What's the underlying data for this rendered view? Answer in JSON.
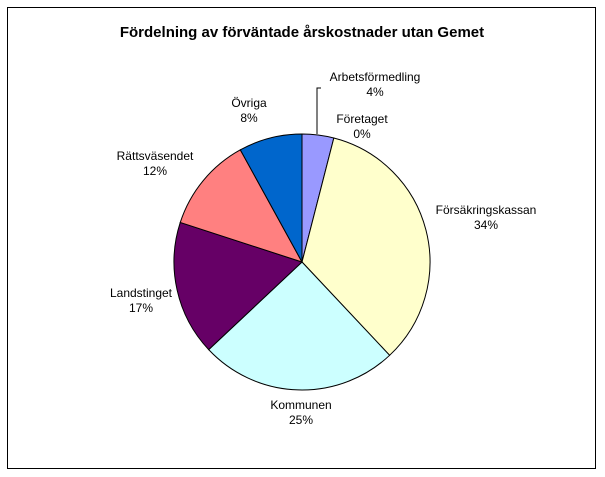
{
  "chart_data": {
    "type": "pie",
    "title": "Fördelning av förväntade årskostnader utan Gemet",
    "labels": [
      "Arbetsförmedling",
      "Företaget",
      "Försäkringskassan",
      "Kommunen",
      "Landstinget",
      "Rättsväsendet",
      "Övriga"
    ],
    "values": [
      4,
      0,
      34,
      25,
      17,
      12,
      8
    ],
    "value_labels": [
      "4%",
      "0%",
      "34%",
      "25%",
      "17%",
      "12%",
      "8%"
    ],
    "colors": [
      "#9999ff",
      "#993366",
      "#ffffcc",
      "#ccffff",
      "#660066",
      "#ff8080",
      "#0066cc"
    ],
    "legend": "none"
  }
}
